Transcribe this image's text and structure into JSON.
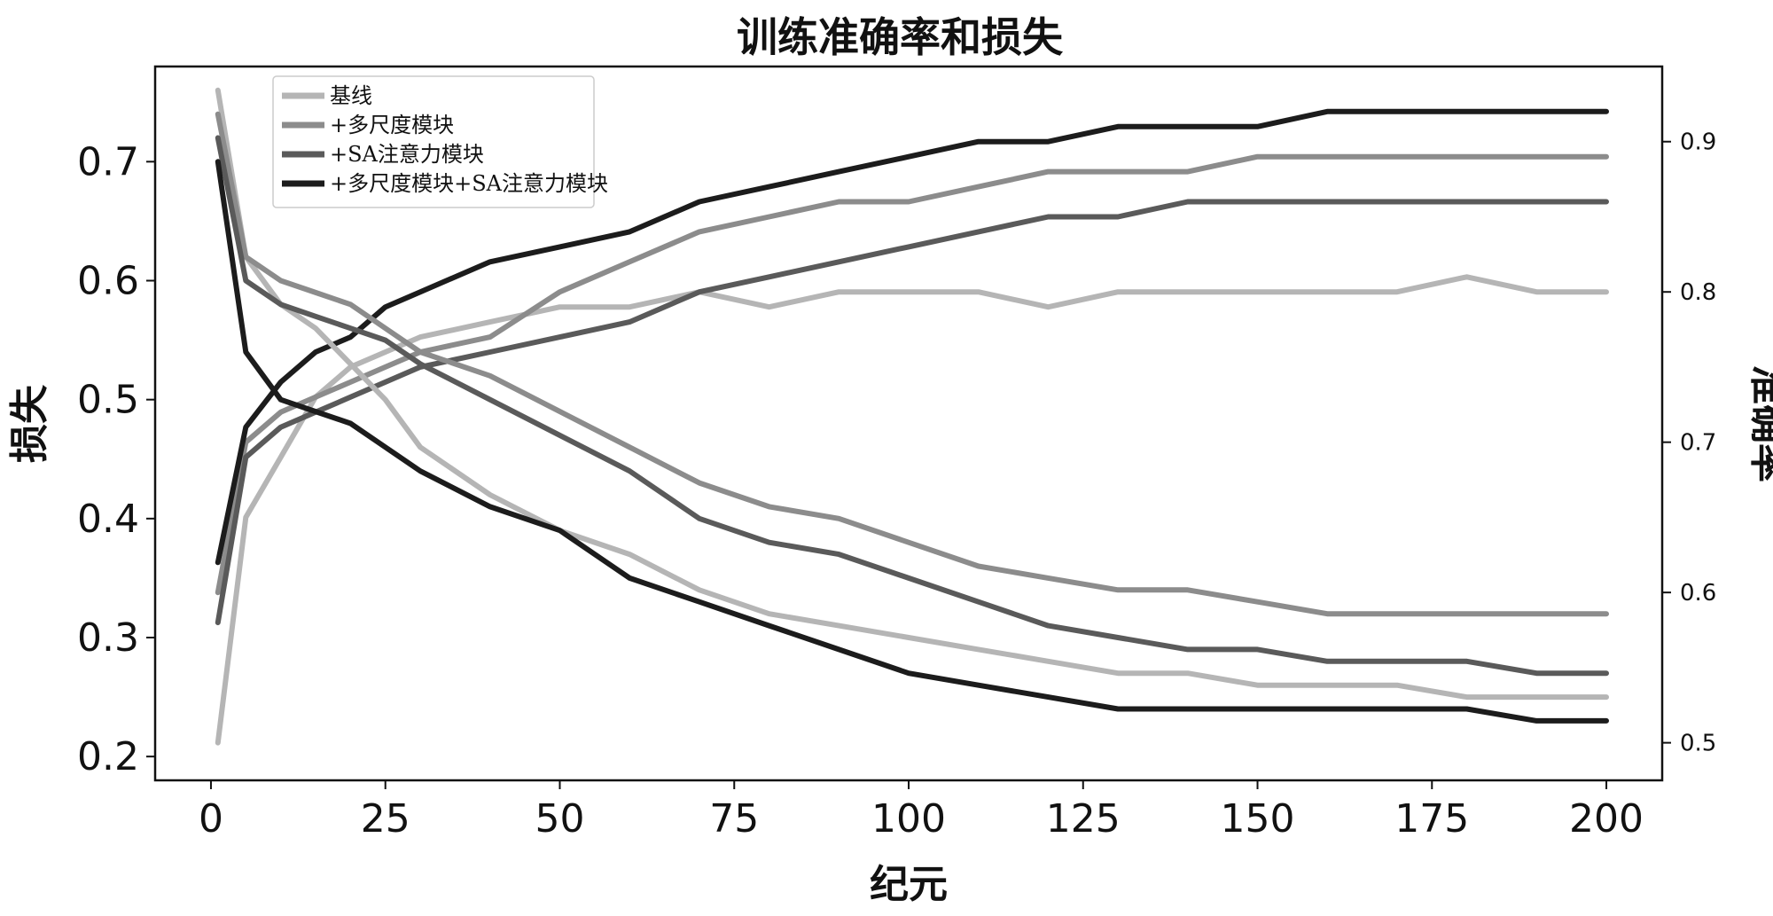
{
  "chart_data": {
    "type": "line",
    "title": "训练准确率和损失",
    "xlabel": "纪元",
    "ylabel_left": "损失",
    "ylabel_right": "准确率",
    "xlim": [
      -8,
      208
    ],
    "ylim_left": [
      0.18,
      0.78
    ],
    "ylim_right": [
      0.475,
      0.95
    ],
    "x_ticks": [
      "0",
      "25",
      "50",
      "75",
      "100",
      "125",
      "150",
      "175",
      "200"
    ],
    "y_ticks_left": [
      "0.2",
      "0.3",
      "0.4",
      "0.5",
      "0.6",
      "0.7"
    ],
    "y_ticks_right": [
      "0.5",
      "0.6",
      "0.7",
      "0.8",
      "0.9"
    ],
    "grid": false,
    "legend_position": "top-left",
    "x": [
      1,
      5,
      10,
      15,
      20,
      25,
      30,
      40,
      50,
      60,
      70,
      80,
      90,
      100,
      110,
      120,
      130,
      140,
      150,
      160,
      170,
      180,
      190,
      200
    ],
    "series": [
      {
        "name": "基线",
        "color": "#b5b5b5",
        "width": 6,
        "axis": "right",
        "values": [
          0.5,
          0.65,
          0.69,
          0.73,
          0.75,
          0.76,
          0.77,
          0.78,
          0.79,
          0.79,
          0.8,
          0.79,
          0.8,
          0.8,
          0.8,
          0.79,
          0.8,
          0.8,
          0.8,
          0.8,
          0.8,
          0.81,
          0.8,
          0.8
        ]
      },
      {
        "name": "+多尺度模块",
        "color": "#8c8c8c",
        "width": 6,
        "axis": "right",
        "values": [
          0.6,
          0.7,
          0.72,
          0.73,
          0.74,
          0.75,
          0.76,
          0.77,
          0.8,
          0.82,
          0.84,
          0.85,
          0.86,
          0.86,
          0.87,
          0.88,
          0.88,
          0.88,
          0.89,
          0.89,
          0.89,
          0.89,
          0.89,
          0.89
        ]
      },
      {
        "name": "+SA注意力模块",
        "color": "#5a5a5a",
        "width": 6,
        "axis": "right",
        "values": [
          0.58,
          0.69,
          0.71,
          0.72,
          0.73,
          0.74,
          0.75,
          0.76,
          0.77,
          0.78,
          0.8,
          0.81,
          0.82,
          0.83,
          0.84,
          0.85,
          0.85,
          0.86,
          0.86,
          0.86,
          0.86,
          0.86,
          0.86,
          0.86
        ]
      },
      {
        "name": "+多尺度模块+SA注意力模块",
        "color": "#1c1c1c",
        "width": 6,
        "axis": "right",
        "values": [
          0.62,
          0.71,
          0.74,
          0.76,
          0.77,
          0.79,
          0.8,
          0.82,
          0.83,
          0.84,
          0.86,
          0.87,
          0.88,
          0.89,
          0.9,
          0.9,
          0.91,
          0.91,
          0.91,
          0.92,
          0.92,
          0.92,
          0.92,
          0.92
        ]
      },
      {
        "color": "#b5b5b5",
        "width": 6,
        "axis": "left",
        "values": [
          0.76,
          0.62,
          0.58,
          0.56,
          0.53,
          0.5,
          0.46,
          0.42,
          0.39,
          0.37,
          0.34,
          0.32,
          0.31,
          0.3,
          0.29,
          0.28,
          0.27,
          0.27,
          0.26,
          0.26,
          0.26,
          0.25,
          0.25,
          0.25
        ]
      },
      {
        "color": "#8c8c8c",
        "width": 6,
        "axis": "left",
        "values": [
          0.74,
          0.62,
          0.6,
          0.59,
          0.58,
          0.56,
          0.54,
          0.52,
          0.49,
          0.46,
          0.43,
          0.41,
          0.4,
          0.38,
          0.36,
          0.35,
          0.34,
          0.34,
          0.33,
          0.32,
          0.32,
          0.32,
          0.32,
          0.32
        ]
      },
      {
        "color": "#5a5a5a",
        "width": 6,
        "axis": "left",
        "values": [
          0.72,
          0.6,
          0.58,
          0.57,
          0.56,
          0.55,
          0.53,
          0.5,
          0.47,
          0.44,
          0.4,
          0.38,
          0.37,
          0.35,
          0.33,
          0.31,
          0.3,
          0.29,
          0.29,
          0.28,
          0.28,
          0.28,
          0.27,
          0.27
        ]
      },
      {
        "color": "#1c1c1c",
        "width": 6,
        "axis": "left",
        "values": [
          0.7,
          0.54,
          0.5,
          0.49,
          0.48,
          0.46,
          0.44,
          0.41,
          0.39,
          0.35,
          0.33,
          0.31,
          0.29,
          0.27,
          0.26,
          0.25,
          0.24,
          0.24,
          0.24,
          0.24,
          0.24,
          0.24,
          0.23,
          0.23
        ]
      }
    ]
  }
}
